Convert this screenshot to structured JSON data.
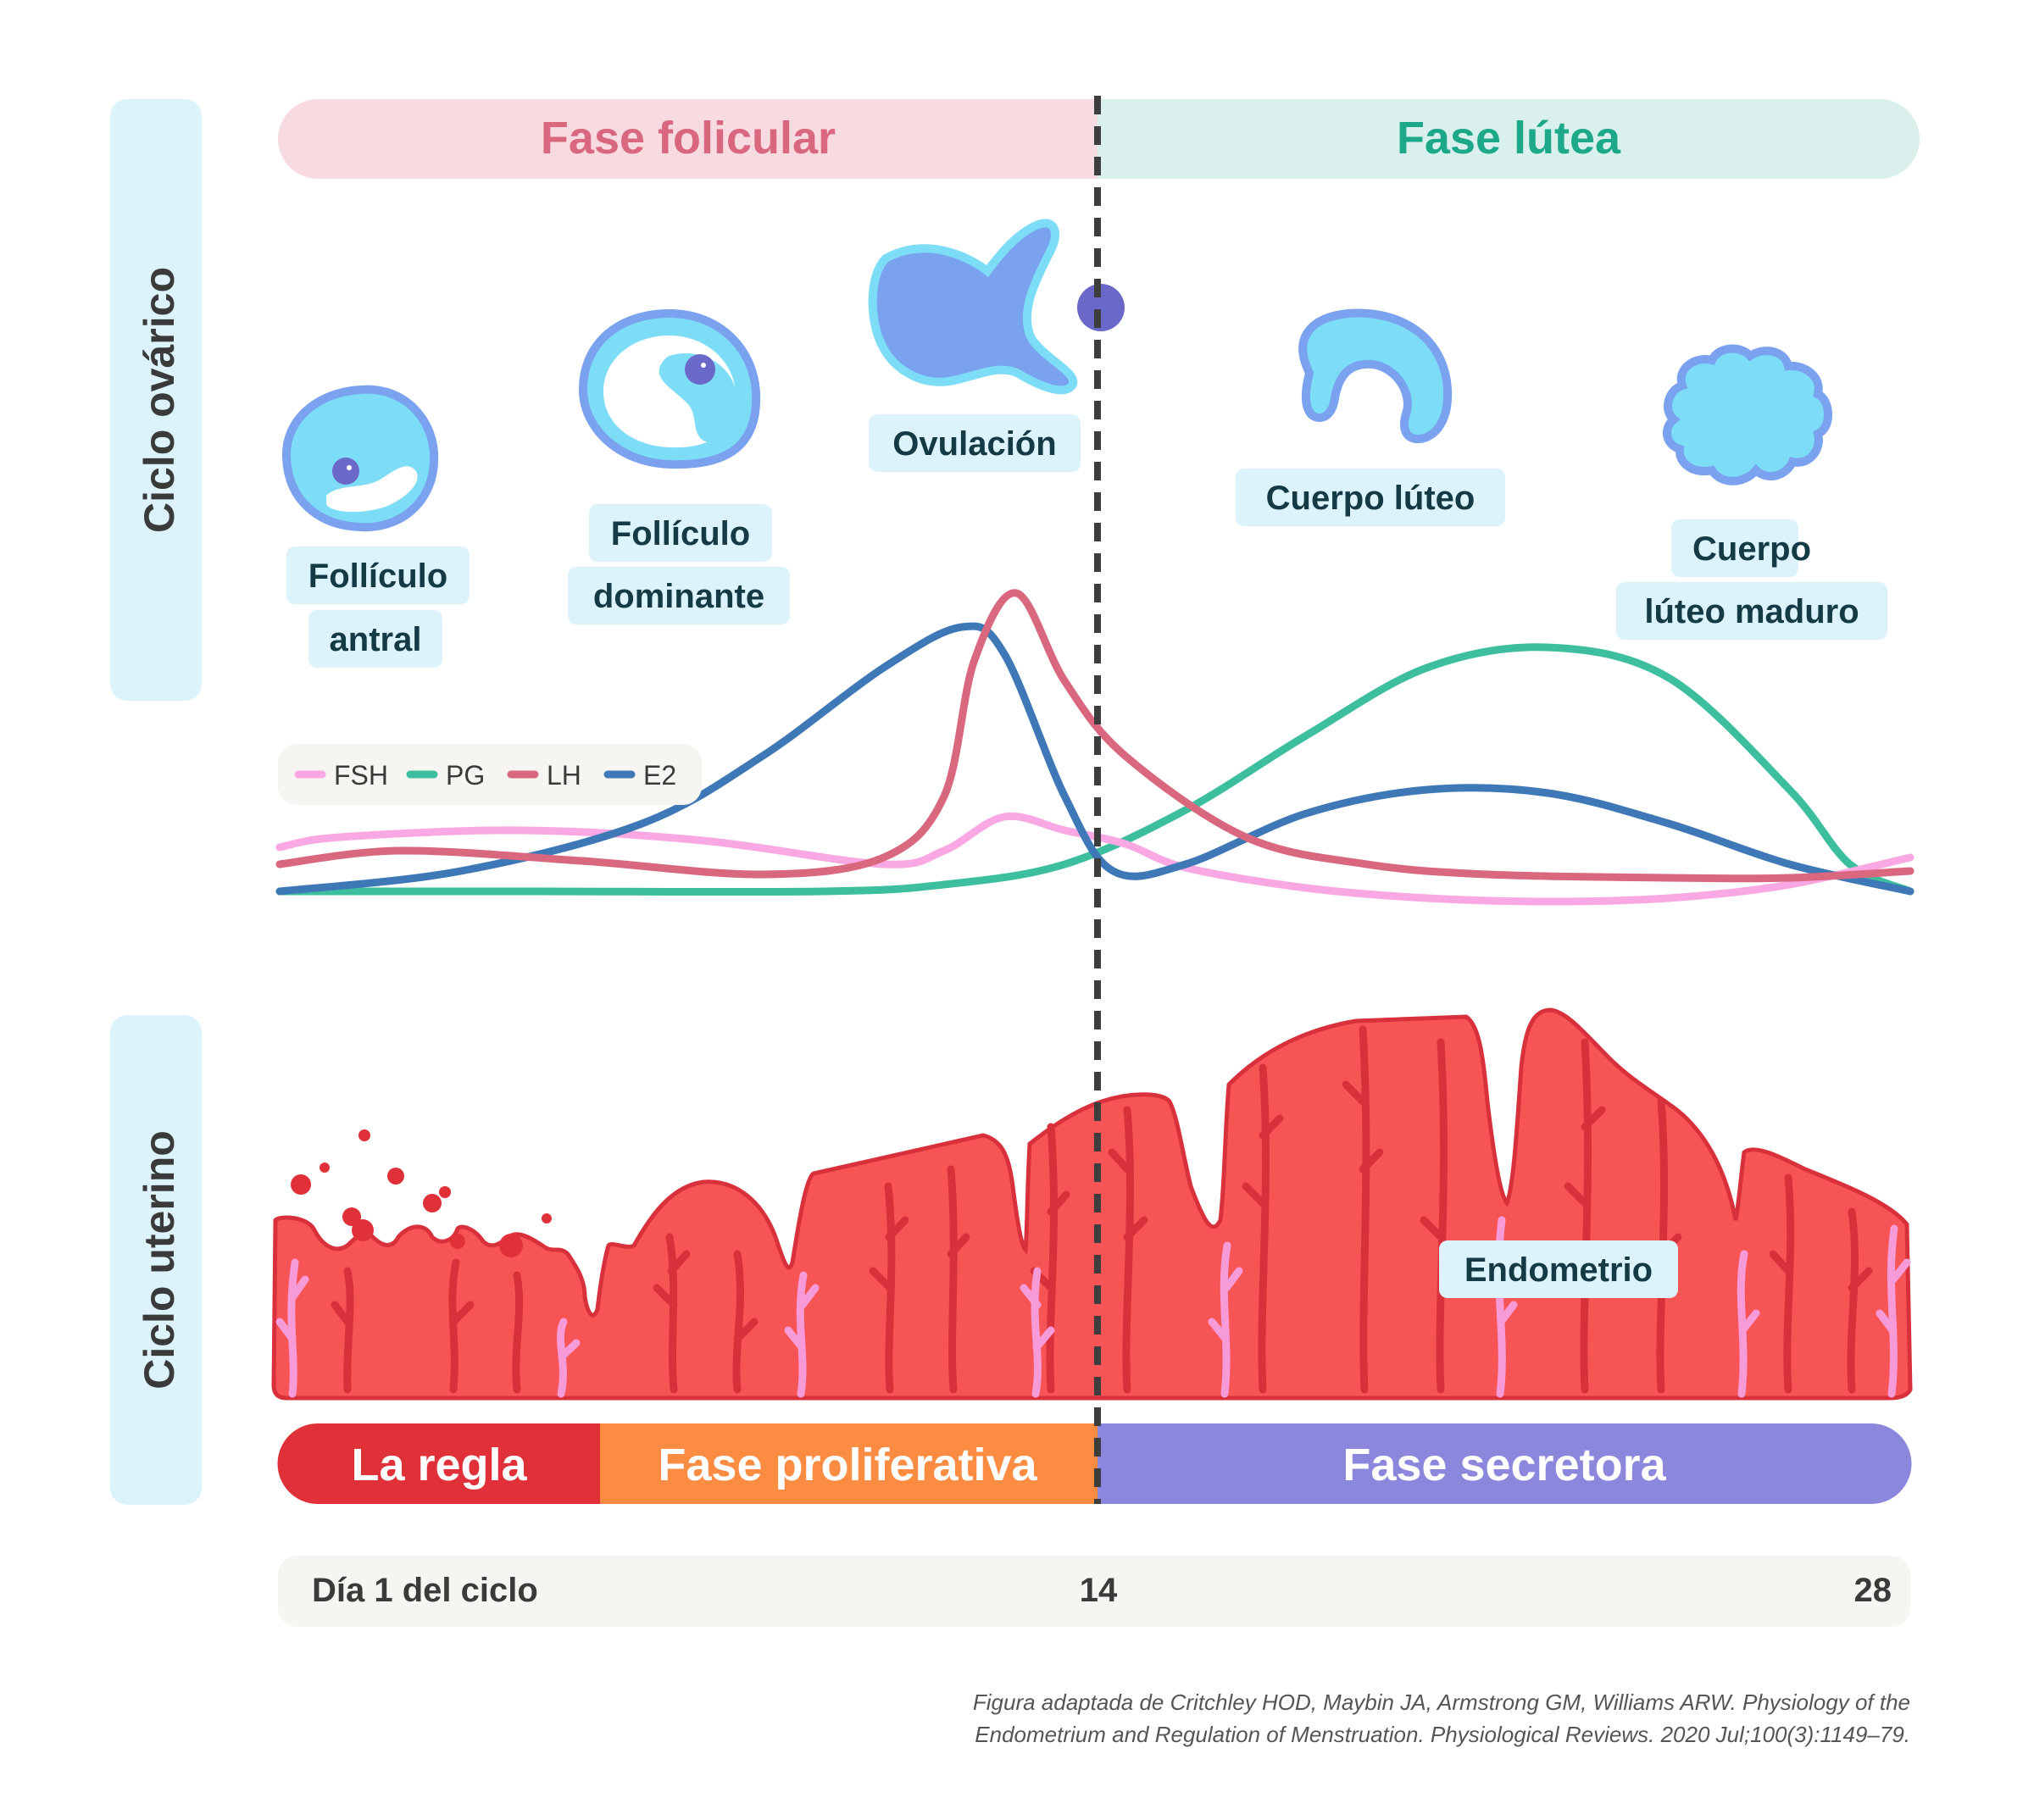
{
  "side_labels": {
    "ovarian": "Ciclo ovárico",
    "uterine": "Ciclo uterino"
  },
  "phases_top": {
    "follicular": "Fase folicular",
    "luteal": "Fase lútea"
  },
  "ovary_stages": {
    "antral_1": "Follículo",
    "antral_2": "antral",
    "dominant_1": "Follículo",
    "dominant_2": "dominante",
    "ovulation": "Ovulación",
    "corpus_luteum": "Cuerpo lúteo",
    "mature_1": "Cuerpo",
    "mature_2": "lúteo maduro"
  },
  "legend": [
    {
      "name": "FSH",
      "color": "#f9a8e3"
    },
    {
      "name": "PG",
      "color": "#3dbf9f"
    },
    {
      "name": "LH",
      "color": "#d9677e"
    },
    {
      "name": "E2",
      "color": "#3f78b7"
    }
  ],
  "chart_data": {
    "type": "line",
    "x_unit": "día del ciclo",
    "xlim": [
      1,
      28
    ],
    "series": [
      {
        "name": "FSH",
        "color": "#f9a8e3",
        "x": [
          1,
          2,
          5,
          8,
          11,
          12,
          13,
          14,
          15,
          16,
          18,
          20,
          22,
          24,
          26,
          28
        ],
        "y": [
          25,
          28,
          30,
          27,
          20,
          24,
          34,
          30,
          26,
          19,
          13,
          10,
          9,
          10,
          14,
          22
        ]
      },
      {
        "name": "PG",
        "color": "#3dbf9f",
        "x": [
          1,
          5,
          10,
          12,
          14,
          16,
          18,
          20,
          22,
          24,
          26,
          27,
          28
        ],
        "y": [
          12,
          12,
          12,
          14,
          20,
          36,
          58,
          78,
          84,
          75,
          42,
          20,
          12
        ]
      },
      {
        "name": "LH",
        "color": "#d9677e",
        "x": [
          1,
          3,
          6,
          9,
          11,
          12,
          12.5,
          13.2,
          14,
          15,
          17,
          19,
          21,
          24,
          26,
          28
        ],
        "y": [
          20,
          24,
          21,
          17,
          22,
          40,
          80,
          100,
          74,
          52,
          28,
          20,
          17,
          16,
          16,
          18
        ]
      },
      {
        "name": "E2",
        "color": "#3f78b7",
        "x": [
          1,
          4,
          7,
          9,
          11,
          12.3,
          13,
          14,
          14.8,
          16,
          18,
          20,
          22,
          24,
          26,
          28
        ],
        "y": [
          12,
          18,
          32,
          52,
          78,
          90,
          82,
          40,
          18,
          20,
          35,
          42,
          41,
          32,
          20,
          12
        ]
      }
    ]
  },
  "endometrium_label": "Endometrio",
  "phases_bottom": {
    "menses": "La regla",
    "proliferative": "Fase proliferativa",
    "secretory": "Fase secretora"
  },
  "timeline": {
    "start": "Día 1 del ciclo",
    "mid": "14",
    "end": "28"
  },
  "citation": {
    "line1": "Figura adaptada de Critchley HOD, Maybin JA, Armstrong GM, Williams ARW. Physiology of the",
    "line2": "Endometrium and Regulation of Menstruation. Physiological Reviews. 2020 Jul;100(3):1149–79."
  },
  "colors": {
    "follicular_bg": "#f8dbe1",
    "follicular_text": "#d9677e",
    "luteal_bg": "#d9f0ec",
    "luteal_text": "#1ea88a",
    "side_bg": "#dcf3fb",
    "label_bg": "#dcf3fb",
    "label_text": "#143a45",
    "endometrium": "#f75555",
    "vessel": "#d9313c",
    "gland": "#f79ad8",
    "menses": "#e03138",
    "proliferative": "#fb8c42",
    "secretory": "#8a87dd",
    "timeline_bg": "#f7f5f2",
    "dashed": "#3d3d3d"
  }
}
